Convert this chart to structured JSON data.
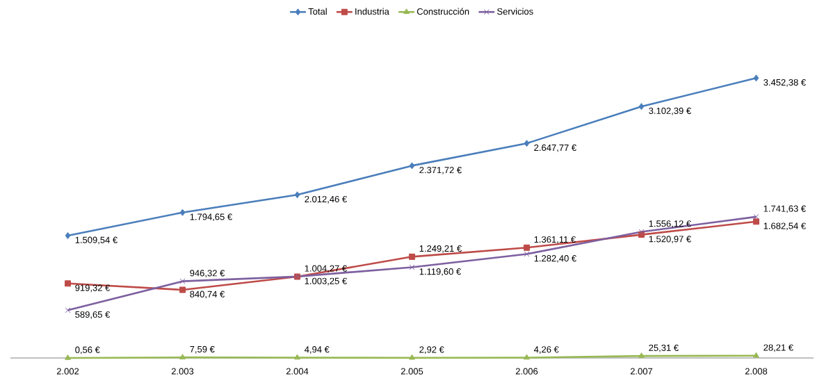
{
  "chart_data": {
    "type": "line",
    "categories": [
      "2.002",
      "2.003",
      "2.004",
      "2.005",
      "2.006",
      "2.007",
      "2.008"
    ],
    "tick_labels": "x",
    "legend": "top",
    "data_labels": true,
    "series": [
      {
        "name": "Total",
        "color": "#4a7ebb",
        "marker": "diamond",
        "values": [
          1509.54,
          1794.65,
          2012.46,
          2371.72,
          2647.77,
          3102.39,
          3452.38
        ],
        "value_labels": [
          "1.509,54 €",
          "1.794,65 €",
          "2.012,46 €",
          "2.371,72 €",
          "2.647,77 €",
          "3.102,39 €",
          "3.452,38 €"
        ]
      },
      {
        "name": "Industria",
        "color": "#be4b48",
        "marker": "square",
        "values": [
          919.32,
          840.74,
          1003.25,
          1249.21,
          1361.11,
          1520.97,
          1682.54
        ],
        "value_labels": [
          "919,32 €",
          "840,74 €",
          "1.003,25 €",
          "1.249,21 €",
          "1.361,11 €",
          "1.520,97 €",
          "1.682,54 €"
        ]
      },
      {
        "name": "Construcción",
        "color": "#98b954",
        "marker": "triangle",
        "values": [
          0.56,
          7.59,
          4.94,
          2.92,
          4.26,
          25.31,
          28.21
        ],
        "value_labels": [
          "0,56 €",
          "7,59 €",
          "4,94 €",
          "2,92 €",
          "4,26 €",
          "25,31 €",
          "28,21 €"
        ]
      },
      {
        "name": "Servicios",
        "color": "#7d60a0",
        "marker": "cross",
        "values": [
          589.65,
          946.32,
          1004.27,
          1119.6,
          1282.4,
          1556.12,
          1741.63
        ],
        "value_labels": [
          "589,65 €",
          "946,32 €",
          "1.004,27 €",
          "1.119,60 €",
          "1.282,40 €",
          "1.556,12 €",
          "1.741,63 €"
        ]
      }
    ]
  }
}
